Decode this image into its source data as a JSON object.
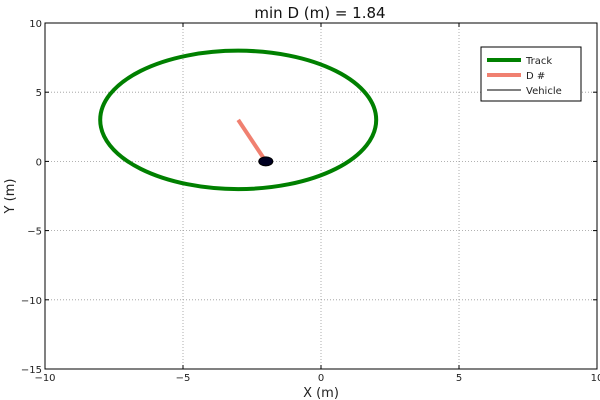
{
  "chart_data": {
    "type": "line",
    "title": "min D (m) = 1.84",
    "xlabel": "X (m)",
    "ylabel": "Y (m)",
    "xlim": [
      -10,
      10
    ],
    "ylim": [
      -15,
      10
    ],
    "xticks": [
      -10,
      -5,
      0,
      5,
      10
    ],
    "yticks": [
      -15,
      -10,
      -5,
      0,
      5,
      10
    ],
    "xtick_labels": [
      "−10",
      "−5",
      "0",
      "5",
      "10"
    ],
    "ytick_labels": [
      "−15",
      "−10",
      "−5",
      "0",
      "5",
      "10"
    ],
    "grid": true,
    "legend_position": "top-right",
    "track": {
      "name": "Track",
      "color": "#008000",
      "shape": "ellipse",
      "center": [
        -3,
        3
      ],
      "radius_x": 5,
      "radius_y": 5
    },
    "distance_segment": {
      "name": "D #",
      "color": "#f08070",
      "x": [
        -2,
        -3
      ],
      "y": [
        0,
        3
      ]
    },
    "vehicle": {
      "name": "Vehicle",
      "color": "#000022",
      "x": -2,
      "y": 0
    },
    "legend": [
      "Track",
      "D #",
      "Vehicle"
    ]
  }
}
